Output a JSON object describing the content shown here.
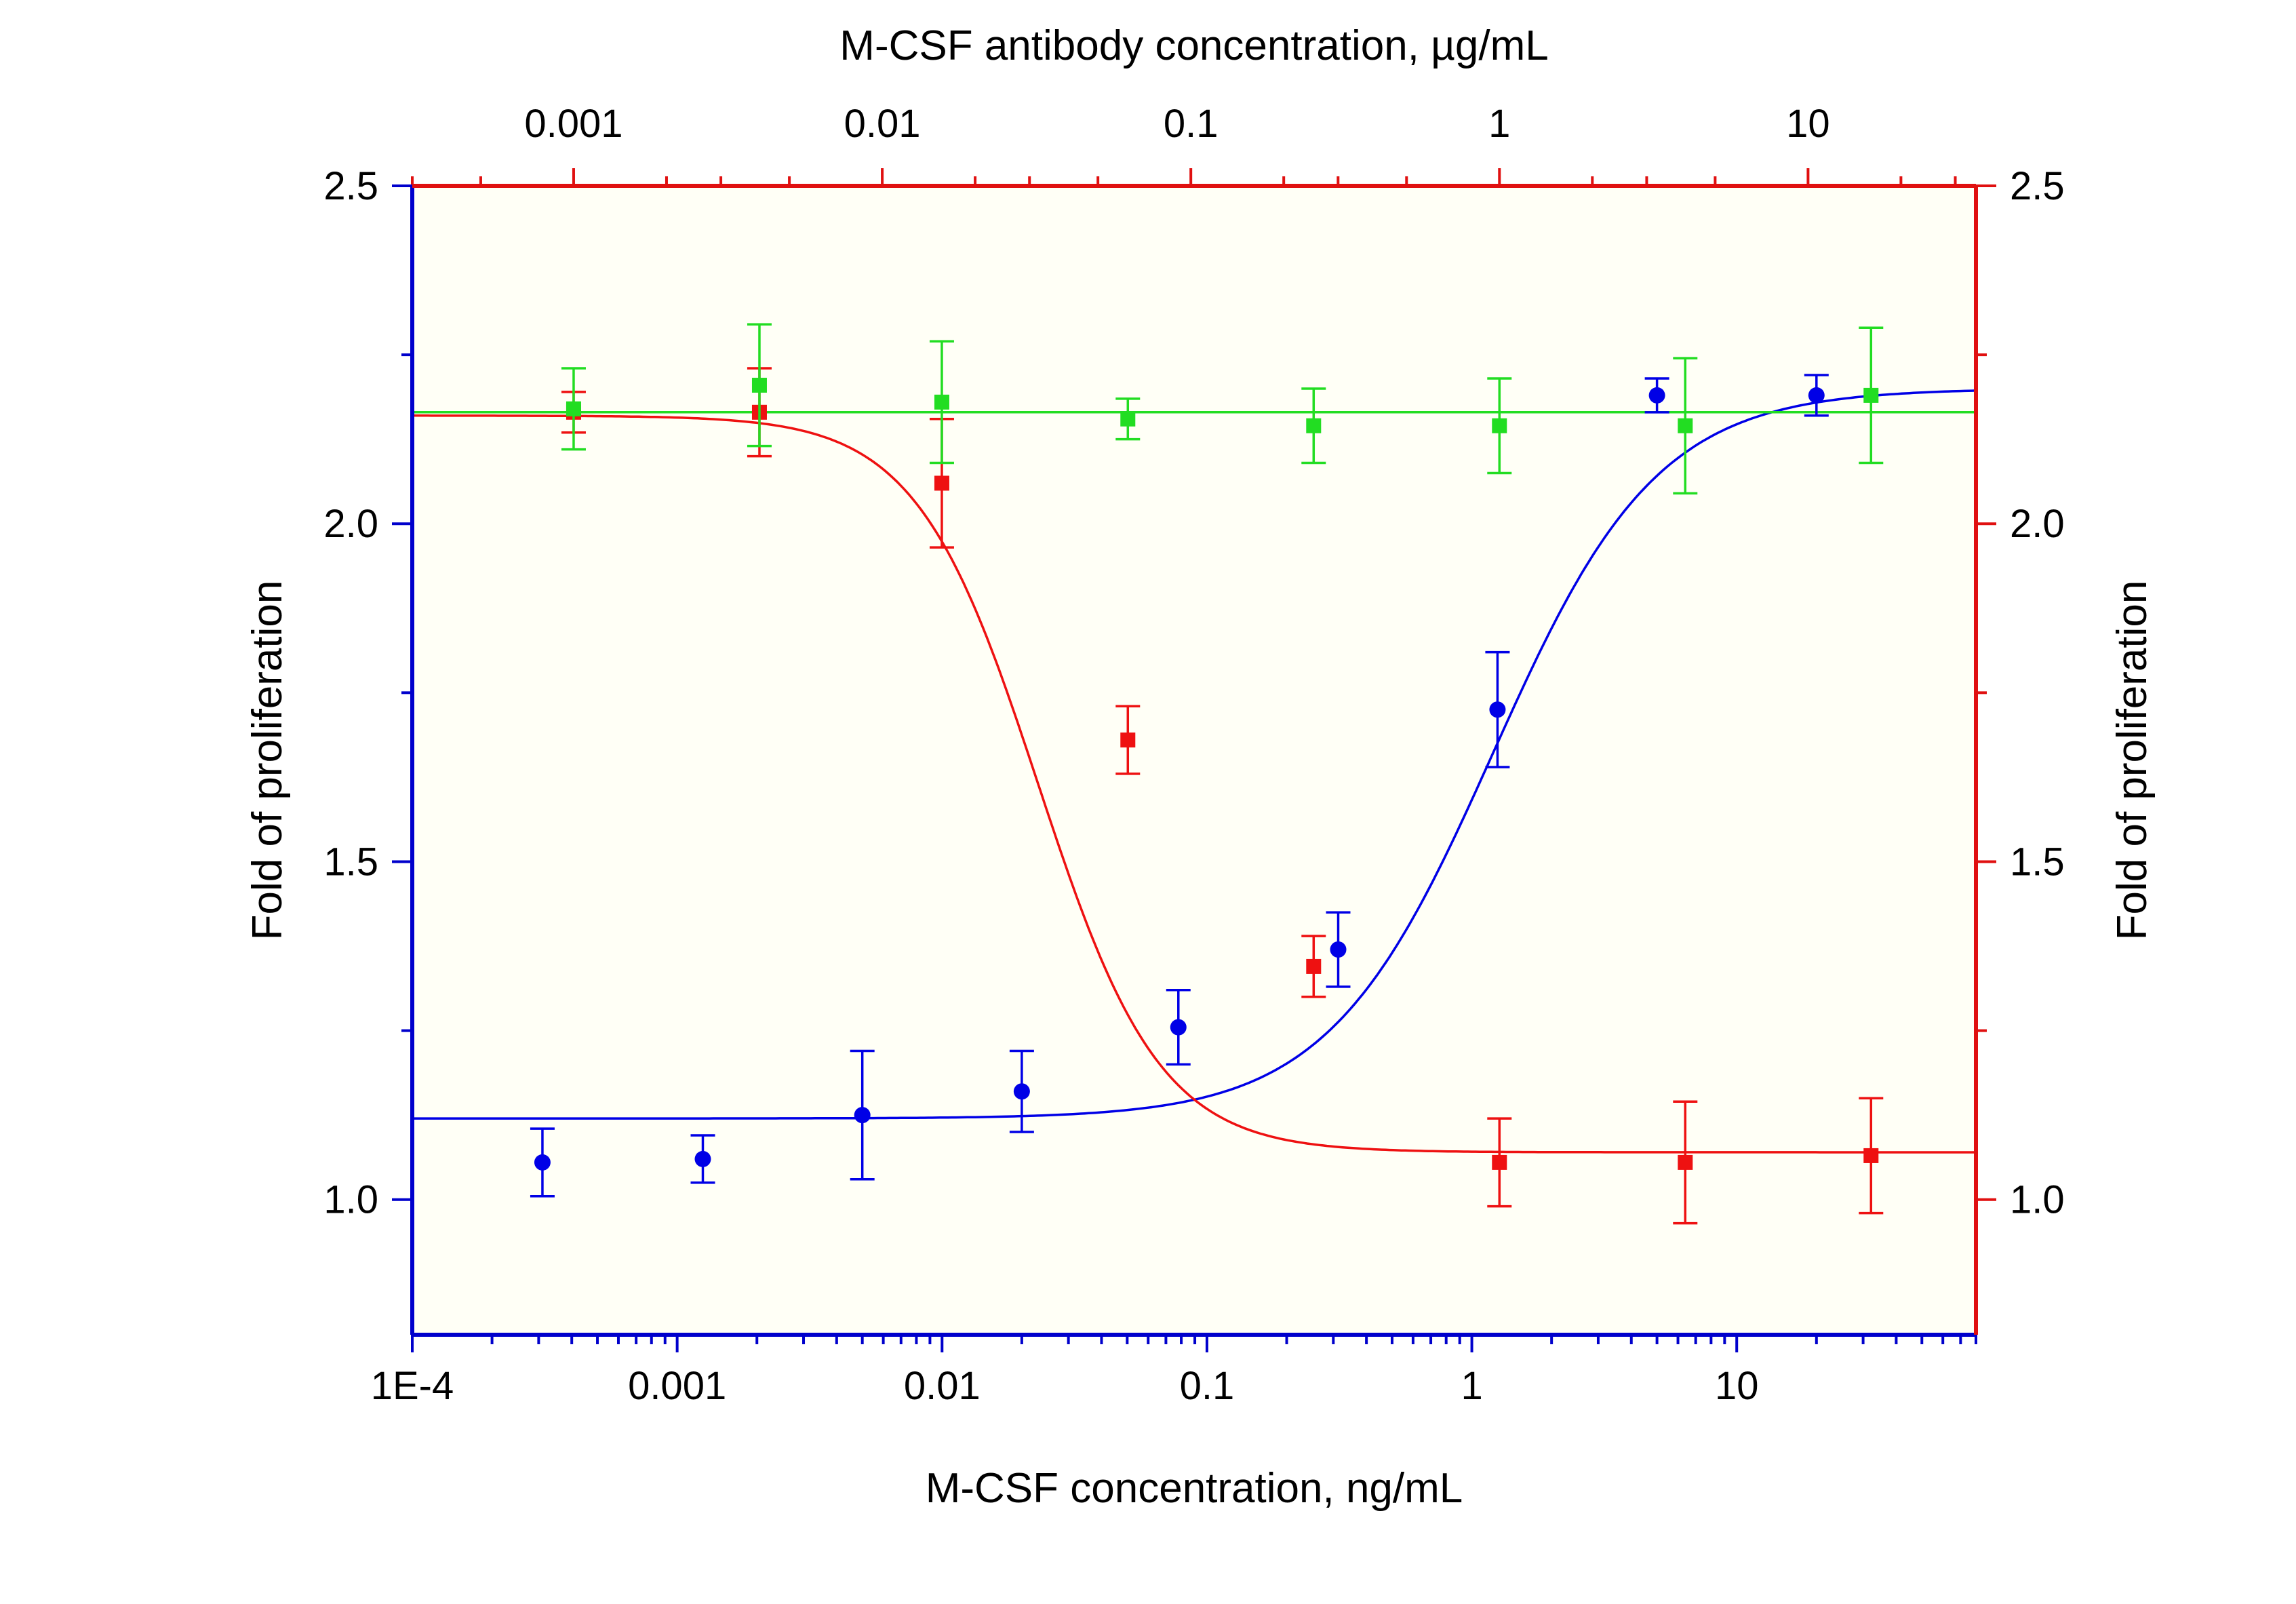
{
  "chart_data": {
    "type": "scatter",
    "title": "",
    "xlabel": "M-CSF concentration, ng/mL",
    "x2label": "M-CSF antibody concentration, µg/mL",
    "ylabel": "Fold of proliferation",
    "y2label": "Fold of proliferation",
    "xscale": "log",
    "x2scale": "log",
    "xlim": [
      0.0001,
      80
    ],
    "x2lim": [
      0.0003,
      35
    ],
    "ylim": [
      0.8,
      2.5
    ],
    "x_ticks": [
      "1E-4",
      "0.001",
      "0.01",
      "0.1",
      "1",
      "10"
    ],
    "x2_ticks": [
      "0.001",
      "0.01",
      "0.1",
      "1",
      "10"
    ],
    "y_ticks": [
      "1.0",
      "1.5",
      "2.0",
      "2.5"
    ],
    "y2_ticks": [
      "1.0",
      "1.5",
      "2.0",
      "2.5"
    ],
    "grid": false,
    "legend": "none",
    "background": "#fffff6",
    "series": [
      {
        "axis": "bottom",
        "marker": "circle",
        "color": "#0000e6",
        "x": [
          0.00031,
          0.00125,
          0.005,
          0.02,
          0.078,
          0.313,
          1.25,
          5,
          20
        ],
        "y": [
          1.055,
          1.06,
          1.125,
          1.16,
          1.255,
          1.37,
          1.725,
          2.19,
          2.19
        ],
        "err": [
          0.05,
          0.035,
          0.095,
          0.06,
          0.055,
          0.055,
          0.085,
          0.025,
          0.03
        ],
        "fit": {
          "bottom": 1.12,
          "top": 2.2,
          "ec50": 1.2,
          "hill": 1.4
        }
      },
      {
        "axis": "top",
        "marker": "square",
        "color": "#ee1111",
        "x": [
          0.001,
          0.004,
          0.0156,
          0.0625,
          0.25,
          1,
          4,
          16
        ],
        "y": [
          2.165,
          2.165,
          2.06,
          1.68,
          1.345,
          1.055,
          1.055,
          1.065
        ],
        "err": [
          0.03,
          0.065,
          0.095,
          0.05,
          0.045,
          0.065,
          0.09,
          0.085
        ],
        "fit": {
          "bottom": 1.07,
          "top": 2.16,
          "ec50": 0.032,
          "hill": 2.2
        }
      },
      {
        "axis": "top",
        "marker": "square",
        "color": "#22dd22",
        "x": [
          0.001,
          0.004,
          0.0156,
          0.0625,
          0.25,
          1,
          4,
          16
        ],
        "y": [
          2.17,
          2.205,
          2.18,
          2.155,
          2.145,
          2.145,
          2.145,
          2.19
        ],
        "err": [
          0.06,
          0.09,
          0.09,
          0.03,
          0.055,
          0.07,
          0.1,
          0.1
        ],
        "fit": {
          "constant": 2.165
        }
      }
    ],
    "colors": {
      "bottom_axis": "#0000cc",
      "left_axis": "#0000cc",
      "top_axis": "#e01010",
      "right_axis": "#e01010"
    }
  }
}
